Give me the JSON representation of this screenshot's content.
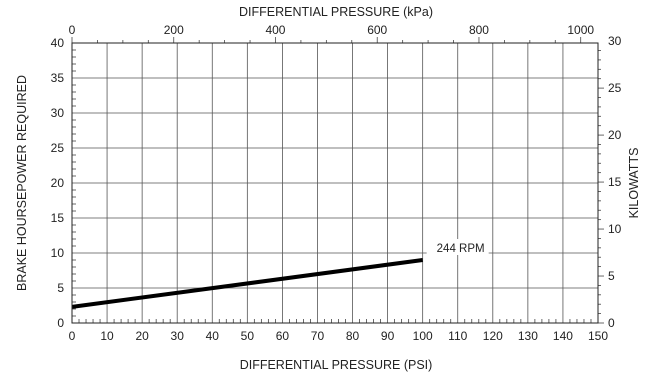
{
  "chart_data": {
    "type": "line",
    "title": "",
    "top_xlabel": "DIFFERENTIAL PRESSURE (kPa)",
    "xlabel": "DIFFERENTIAL PRESSURE (PSI)",
    "ylabel": "BRAKE HOURSEPOWER REQUIRED",
    "right_ylabel": "KILOWATTS",
    "xlim": [
      0,
      150
    ],
    "ylim": [
      0,
      40
    ],
    "top_xlim": [
      0,
      1034
    ],
    "right_ylim": [
      0,
      29.8
    ],
    "x_ticks": [
      0,
      10,
      20,
      30,
      40,
      50,
      60,
      70,
      80,
      90,
      100,
      110,
      120,
      130,
      140,
      150
    ],
    "y_ticks": [
      0,
      5,
      10,
      15,
      20,
      25,
      30,
      35,
      40
    ],
    "top_x_ticks": [
      0,
      200,
      400,
      600,
      800,
      1000
    ],
    "right_y_ticks": [
      0,
      5,
      10,
      15,
      20,
      25,
      30
    ],
    "grid": true,
    "series": [
      {
        "name": "244 RPM",
        "x": [
          0,
          100
        ],
        "y": [
          2.3,
          9.0
        ],
        "color": "#000000"
      }
    ]
  }
}
